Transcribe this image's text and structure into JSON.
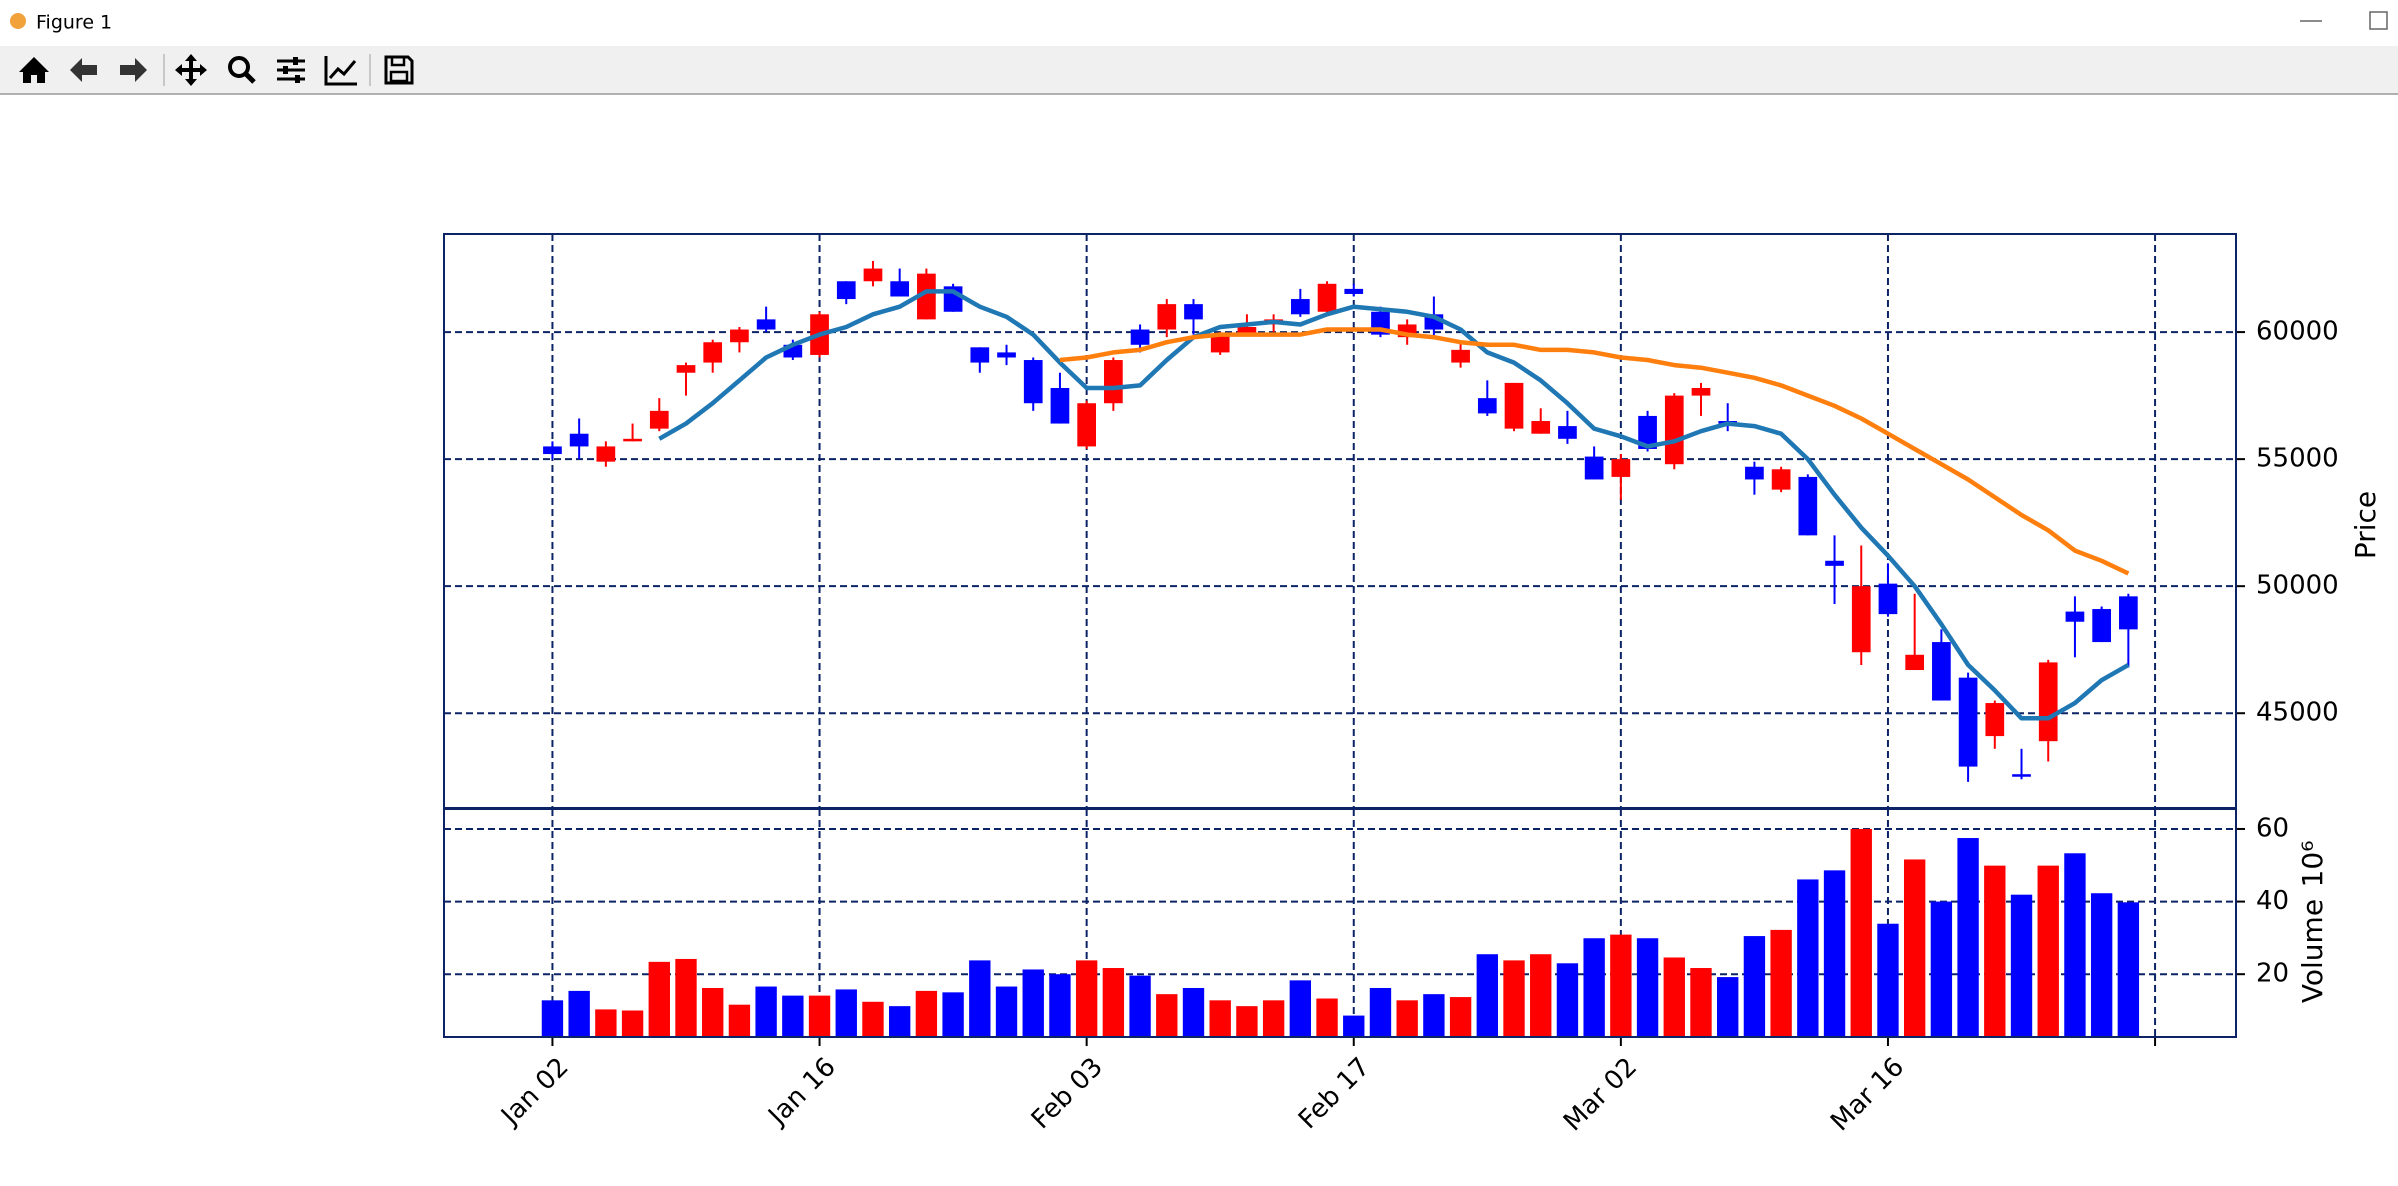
{
  "window": {
    "title": "Figure 1"
  },
  "chart_data": [
    {
      "type": "candlestick",
      "x": [
        0,
        1,
        2,
        3,
        4,
        5,
        6,
        7,
        8,
        9,
        10,
        11,
        12,
        13,
        14,
        15,
        16,
        17,
        18,
        19,
        20,
        21,
        22,
        23,
        24,
        25,
        26,
        27,
        28,
        29,
        30,
        31,
        32,
        33,
        34,
        35,
        36,
        37,
        38,
        39,
        40,
        41,
        42,
        43,
        44,
        45,
        46,
        47,
        48,
        49,
        50,
        51,
        52,
        53,
        54,
        55,
        56,
        57,
        58,
        59
      ],
      "open": [
        55500,
        56000,
        54900,
        55700,
        56200,
        58400,
        58800,
        59600,
        60500,
        59500,
        59100,
        62000,
        62000,
        62000,
        60500,
        61800,
        59400,
        59200,
        58900,
        57800,
        55500,
        57200,
        60100,
        60100,
        61100,
        59200,
        59900,
        60300,
        61300,
        60800,
        61700,
        60800,
        59800,
        60700,
        58800,
        57400,
        56200,
        56000,
        56300,
        55100,
        54300,
        56700,
        54800,
        57500,
        56500,
        54700,
        53800,
        54300,
        51000,
        47400,
        50100,
        46700,
        47800,
        46400,
        44100,
        42600,
        43900,
        49000,
        49100,
        49600
      ],
      "high": [
        55700,
        56600,
        55700,
        56400,
        57400,
        58800,
        59700,
        60200,
        61000,
        59700,
        60800,
        62000,
        62800,
        62500,
        62500,
        61900,
        59400,
        59500,
        59000,
        58400,
        57300,
        59000,
        60300,
        61300,
        61300,
        60000,
        60700,
        60700,
        61700,
        62000,
        61900,
        61000,
        60500,
        61400,
        59600,
        58100,
        58000,
        57000,
        56900,
        55500,
        55200,
        56900,
        57600,
        58000,
        57200,
        54900,
        54700,
        54400,
        52000,
        51600,
        50900,
        49700,
        48300,
        46600,
        45500,
        43600,
        47100,
        49600,
        49200,
        49700
      ],
      "low": [
        55000,
        55000,
        54700,
        55700,
        56100,
        57500,
        58400,
        59200,
        60000,
        58900,
        59000,
        61100,
        61800,
        61400,
        60500,
        60800,
        58400,
        58700,
        56900,
        56400,
        55400,
        56900,
        59200,
        59800,
        59900,
        59100,
        59900,
        60000,
        60600,
        60700,
        61400,
        59800,
        59500,
        59800,
        58600,
        56700,
        56100,
        56000,
        55600,
        54200,
        53400,
        55300,
        54600,
        56700,
        56100,
        53600,
        53700,
        52000,
        49300,
        46900,
        48800,
        46700,
        45500,
        42300,
        43600,
        42400,
        43100,
        47200,
        47800,
        46800
      ],
      "close": [
        55200,
        55500,
        55500,
        55800,
        56900,
        58700,
        59600,
        60100,
        60100,
        59000,
        60700,
        61300,
        62500,
        61400,
        62300,
        60800,
        58800,
        59000,
        57200,
        56400,
        57200,
        58900,
        59500,
        61100,
        60500,
        59900,
        60200,
        60500,
        60700,
        61900,
        61500,
        59900,
        60300,
        60100,
        59300,
        56800,
        58000,
        56500,
        55800,
        54200,
        55000,
        55400,
        57500,
        57800,
        56400,
        54200,
        54600,
        52000,
        50800,
        50000,
        48900,
        47300,
        45500,
        42900,
        45400,
        42500,
        47000,
        48600,
        47800,
        48300
      ],
      "up_color": "#ff0000",
      "down_color": "#0000ff",
      "series": [
        {
          "color": "#1f77b4",
          "values": [
            null,
            null,
            null,
            null,
            55800,
            56400,
            57200,
            58100,
            59000,
            59500,
            59900,
            60200,
            60700,
            61000,
            61600,
            61600,
            61000,
            60600,
            59900,
            58800,
            57800,
            57800,
            57900,
            58900,
            59800,
            60200,
            60300,
            60400,
            60300,
            60700,
            61000,
            60900,
            60800,
            60600,
            60100,
            59200,
            58800,
            58100,
            57200,
            56200,
            55900,
            55500,
            55700,
            56100,
            56400,
            56300,
            56000,
            55000,
            53600,
            52300,
            51200,
            50000,
            48500,
            46900,
            45900,
            44800,
            44800,
            45400,
            46300,
            46900
          ]
        },
        {
          "color": "#ff7f0e",
          "values": [
            null,
            null,
            null,
            null,
            null,
            null,
            null,
            null,
            null,
            null,
            null,
            null,
            null,
            null,
            null,
            null,
            null,
            null,
            null,
            58900,
            59000,
            59200,
            59300,
            59600,
            59800,
            59900,
            59900,
            59900,
            59900,
            60100,
            60100,
            60100,
            59900,
            59800,
            59600,
            59500,
            59500,
            59300,
            59300,
            59200,
            59000,
            58900,
            58700,
            58600,
            58400,
            58200,
            57900,
            57500,
            57100,
            56600,
            56000,
            55400,
            54800,
            54200,
            53500,
            52800,
            52200,
            51400,
            51000,
            50500
          ]
        }
      ],
      "ylabel": "Price",
      "xlim": [
        -4.06,
        63.03
      ],
      "xticks": [
        0,
        10,
        20,
        30,
        40,
        50,
        60
      ],
      "ylim": [
        41270,
        63860
      ],
      "yticks": [
        45000,
        50000,
        55000,
        60000
      ],
      "grid": true
    },
    {
      "type": "bar",
      "x": [
        0,
        1,
        2,
        3,
        4,
        5,
        6,
        7,
        8,
        9,
        10,
        11,
        12,
        13,
        14,
        15,
        16,
        17,
        18,
        19,
        20,
        21,
        22,
        23,
        24,
        25,
        26,
        27,
        28,
        29,
        30,
        31,
        32,
        33,
        34,
        35,
        36,
        37,
        38,
        39,
        40,
        41,
        42,
        43,
        44,
        45,
        46,
        47,
        48,
        49,
        50,
        51,
        52,
        53,
        54,
        55,
        56,
        57,
        58,
        59
      ],
      "values": [
        12.8,
        15.4,
        10.3,
        10.0,
        23.4,
        24.2,
        16.2,
        11.6,
        16.6,
        14.1,
        14.1,
        15.8,
        12.4,
        11.2,
        15.4,
        15.0,
        23.8,
        16.6,
        21.3,
        20.0,
        23.8,
        21.7,
        19.6,
        14.5,
        16.2,
        12.8,
        11.2,
        12.8,
        18.3,
        13.3,
        8.6,
        16.2,
        12.8,
        14.5,
        13.7,
        25.5,
        23.8,
        25.5,
        23.0,
        29.9,
        30.9,
        29.9,
        24.6,
        21.7,
        19.2,
        30.5,
        32.2,
        46.1,
        48.6,
        60.0,
        33.9,
        51.6,
        40.0,
        57.5,
        49.9,
        41.9,
        49.9,
        53.3,
        42.3,
        39.8
      ],
      "up_color": "#ff0000",
      "down_color": "#0000ff",
      "ylabel": "Volume",
      "ylabel_offset": "10⁶",
      "xlim": [
        -4.06,
        63.03
      ],
      "xticks": [
        {
          "value": 0,
          "label": "Jan 02"
        },
        {
          "value": 10,
          "label": "Jan 16"
        },
        {
          "value": 20,
          "label": "Feb 03"
        },
        {
          "value": 30,
          "label": "Feb 17"
        },
        {
          "value": 40,
          "label": "Mar 02"
        },
        {
          "value": 50,
          "label": "Mar 16"
        },
        {
          "value": 60,
          "label": null
        }
      ],
      "ylim": [
        2.7,
        65.5
      ],
      "yticks": [
        20,
        40,
        60
      ],
      "grid": true
    }
  ]
}
